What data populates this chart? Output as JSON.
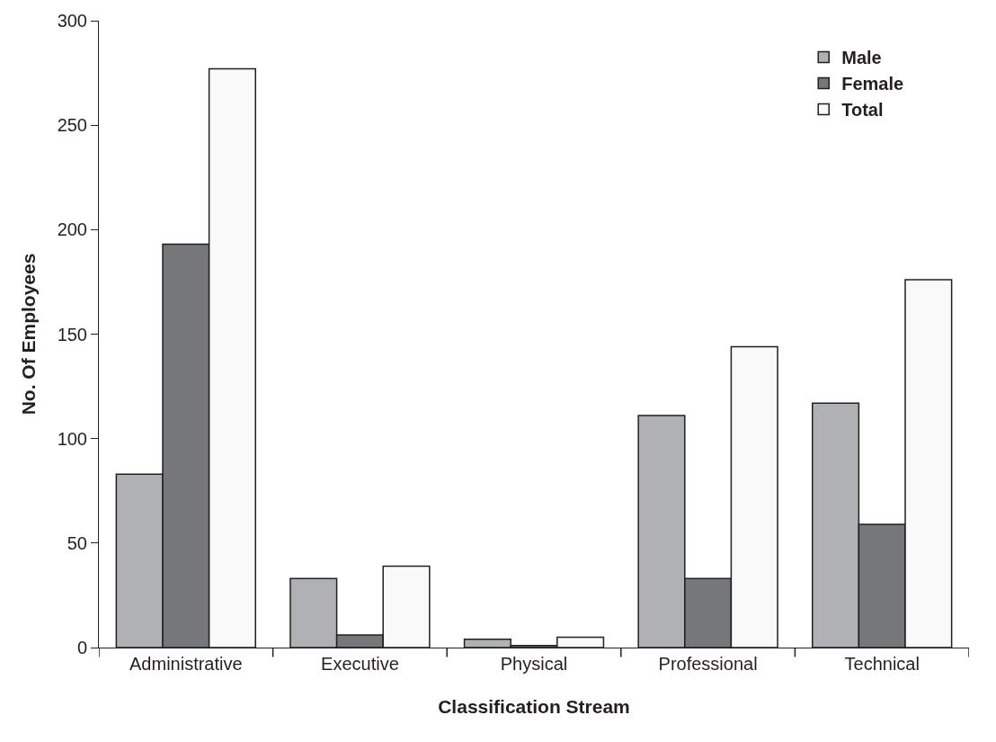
{
  "chart_data": {
    "type": "bar",
    "xlabel": "Classification Stream",
    "ylabel": "No. Of Employees",
    "categories": [
      "Administrative",
      "Executive",
      "Physical",
      "Professional",
      "Technical"
    ],
    "series": [
      {
        "name": "Male",
        "color": "#b0b1b4",
        "values": [
          83,
          33,
          4,
          111,
          117
        ]
      },
      {
        "name": "Female",
        "color": "#76777b",
        "values": [
          193,
          6,
          1,
          33,
          59
        ]
      },
      {
        "name": "Total",
        "color": "#f9f9f9",
        "values": [
          277,
          39,
          5,
          144,
          176
        ]
      }
    ],
    "ylim": [
      0,
      300
    ],
    "yticks": [
      0,
      50,
      100,
      150,
      200,
      250,
      300
    ],
    "grid": false,
    "legend": "top right"
  }
}
